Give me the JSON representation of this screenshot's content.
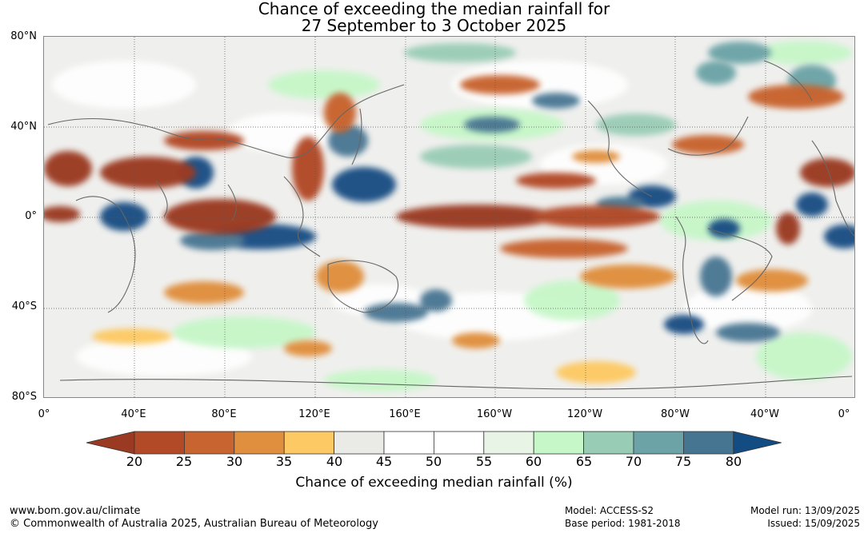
{
  "title": {
    "line1": "Chance of exceeding the median rainfall for",
    "line2": "27 September to 3 October 2025"
  },
  "latitude_labels": [
    "80°N",
    "40°N",
    "0°",
    "40°S",
    "80°S"
  ],
  "longitude_labels": [
    "0°",
    "40°E",
    "80°E",
    "120°E",
    "160°E",
    "160°W",
    "120°W",
    "80°W",
    "40°W",
    "0°"
  ],
  "colorbar": {
    "ticks": [
      "20",
      "25",
      "30",
      "35",
      "40",
      "45",
      "50",
      "55",
      "60",
      "65",
      "70",
      "75",
      "80"
    ],
    "colors": [
      "#9b3a22",
      "#b24a28",
      "#c8642f",
      "#e08f3e",
      "#fdc964",
      "#eaeae6",
      "#ffffff",
      "#ffffff",
      "#e8f5e6",
      "#c6f7c8",
      "#99ccb5",
      "#6ba3a6",
      "#467592",
      "#124c82"
    ],
    "title": "Chance of exceeding median rainfall (%)"
  },
  "footer": {
    "website": "www.bom.gov.au/climate",
    "copyright": "© Commonwealth of Australia 2025, Australian Bureau of Meteorology",
    "model": "Model: ACCESS-S2",
    "base_period": "Base period: 1981-2018",
    "model_run": "Model run: 13/09/2025",
    "issued": "Issued: 15/09/2025"
  }
}
